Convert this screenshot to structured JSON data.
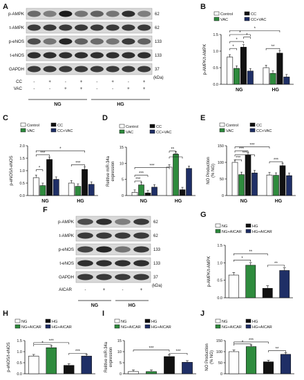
{
  "colors": {
    "control": "#ffffff",
    "cc": "#2e8b3d",
    "vac": "#111111",
    "ccvac": "#1f2f66",
    "ng": "#ffffff",
    "ng_aicar": "#2e8b3d",
    "hg": "#111111",
    "hg_aicar": "#1f2f66"
  },
  "panel_labels": {
    "A": "A",
    "B": "B",
    "C": "C",
    "D": "D",
    "E": "E",
    "F": "F",
    "G": "G",
    "H": "H",
    "I": "I",
    "J": "J"
  },
  "blot_A": {
    "rows": [
      {
        "label": "p-AMPK",
        "kda": "62"
      },
      {
        "label": "t-AMPK",
        "kda": "62"
      },
      {
        "label": "p-eNOS",
        "kda": "133"
      },
      {
        "label": "t-eNOS",
        "kda": "133"
      },
      {
        "label": "GAPDH",
        "kda": "37"
      }
    ],
    "kda_unit": "(kDa)",
    "treatments": [
      {
        "label": "CC",
        "signs": [
          "-",
          "+",
          "-",
          "+",
          "-",
          "+",
          "-",
          "+"
        ]
      },
      {
        "label": "VAC",
        "signs": [
          "-",
          "-",
          "+",
          "+",
          "-",
          "-",
          "+",
          "+"
        ]
      }
    ],
    "groups": [
      "NG",
      "HG"
    ]
  },
  "blot_F": {
    "rows": [
      {
        "label": "p-AMPK",
        "kda": "62"
      },
      {
        "label": "t-AMPK",
        "kda": "62"
      },
      {
        "label": "p-eNOS",
        "kda": "133"
      },
      {
        "label": "t-eNOS",
        "kda": "133"
      },
      {
        "label": "GAPDH",
        "kda": "37"
      }
    ],
    "kda_unit": "(kDa)",
    "treatments": [
      {
        "label": "AICAR",
        "signs": [
          "-",
          "+",
          "-",
          "+"
        ]
      }
    ],
    "groups": [
      "NG",
      "HG"
    ]
  },
  "chart_data": [
    {
      "panel": "B",
      "type": "bar",
      "ylabel": "p-AMPK/t-AMPK",
      "categories": [
        "NG",
        "HG"
      ],
      "ylim": [
        0,
        1.5
      ],
      "yticks": [
        "0.0",
        "0.5",
        "1.0",
        "1.5"
      ],
      "legend": [
        "Control",
        "CC",
        "VAC",
        "CC+VAC"
      ],
      "series": [
        {
          "name": "Control",
          "values": [
            0.82,
            0.5
          ]
        },
        {
          "name": "CC",
          "values": [
            0.48,
            0.33
          ]
        },
        {
          "name": "VAC",
          "values": [
            1.12,
            0.94
          ]
        },
        {
          "name": "CC+VAC",
          "values": [
            0.4,
            0.22
          ]
        }
      ],
      "annotations": [
        "*",
        "*",
        "*",
        "*",
        "*",
        "**"
      ]
    },
    {
      "panel": "C",
      "type": "bar",
      "ylabel": "p-eNOS/t-eNOS",
      "categories": [
        "NG",
        "HG"
      ],
      "ylim": [
        0,
        2.0
      ],
      "yticks": [
        "0.0",
        "0.5",
        "1.0",
        "1.5",
        "2.0"
      ],
      "legend": [
        "Control",
        "CC",
        "VAC",
        "CC+VAC"
      ],
      "series": [
        {
          "name": "Control",
          "values": [
            0.72,
            0.5
          ]
        },
        {
          "name": "CC",
          "values": [
            0.4,
            0.37
          ]
        },
        {
          "name": "VAC",
          "values": [
            1.45,
            1.05
          ]
        },
        {
          "name": "CC+VAC",
          "values": [
            0.65,
            0.45
          ]
        }
      ],
      "annotations": [
        "*",
        "***",
        "*",
        "***"
      ]
    },
    {
      "panel": "D",
      "type": "bar",
      "ylabel": "Relitive miR-34a expression",
      "categories": [
        "NG",
        "HG"
      ],
      "ylim": [
        0,
        15
      ],
      "yticks": [
        "0",
        "5",
        "10",
        "15"
      ],
      "legend": [
        "Control",
        "CC",
        "VAC",
        "CC+VAC"
      ],
      "series": [
        {
          "name": "Control",
          "values": [
            1.0,
            8.8
          ]
        },
        {
          "name": "CC",
          "values": [
            3.3,
            12.8
          ]
        },
        {
          "name": "VAC",
          "values": [
            0.8,
            1.8
          ]
        },
        {
          "name": "CC+VAC",
          "values": [
            2.6,
            8.4
          ]
        }
      ],
      "annotations": [
        "***",
        "***",
        "***",
        "**",
        "***"
      ]
    },
    {
      "panel": "E",
      "type": "bar",
      "ylabel": "NO Production (% NG)",
      "categories": [
        "NG",
        "HG"
      ],
      "ylim": [
        0,
        150
      ],
      "yticks": [
        "0",
        "50",
        "100",
        "150"
      ],
      "legend": [
        "Control",
        "CC",
        "VAC",
        "CC+VAC"
      ],
      "series": [
        {
          "name": "Control",
          "values": [
            100,
            62
          ]
        },
        {
          "name": "CC",
          "values": [
            63,
            61
          ]
        },
        {
          "name": "VAC",
          "values": [
            122,
            90
          ]
        },
        {
          "name": "CC+VAC",
          "values": [
            68,
            60
          ]
        }
      ],
      "annotations": [
        "***",
        "***",
        "***",
        "***",
        "***"
      ]
    },
    {
      "panel": "G",
      "type": "bar",
      "ylabel": "p-AMPK/t-AMPK",
      "categories": [
        "NG",
        "NG+AICAR",
        "HG",
        "HG+AICAR"
      ],
      "ylim": [
        0,
        1.5
      ],
      "yticks": [
        "0.0",
        "0.5",
        "1.0",
        "1.5"
      ],
      "legend": [
        "NG",
        "HG",
        "NG+AICAR",
        "HG+AICAR"
      ],
      "values": [
        0.65,
        0.93,
        0.27,
        0.78
      ],
      "annotations": [
        "*",
        "**",
        "**"
      ]
    },
    {
      "panel": "H",
      "type": "bar",
      "ylabel": "p-eNOS/t-eNOS",
      "categories": [
        "NG",
        "NG+AICAR",
        "HG",
        "HG+AICAR"
      ],
      "ylim": [
        0,
        1.5
      ],
      "yticks": [
        "0.0",
        "0.5",
        "1.0",
        "1.5"
      ],
      "legend": [
        "NG",
        "HG",
        "NG+AICAR",
        "HG+AICAR"
      ],
      "values": [
        0.8,
        1.18,
        0.38,
        0.8
      ],
      "annotations": [
        "*",
        "***",
        "***"
      ]
    },
    {
      "panel": "I",
      "type": "bar",
      "ylabel": "Relitive miR-34a expression",
      "categories": [
        "NG",
        "NG+AICAR",
        "HG",
        "HG+AICAR"
      ],
      "ylim": [
        0,
        15
      ],
      "yticks": [
        "0",
        "5",
        "10",
        "15"
      ],
      "legend": [
        "NG",
        "HG",
        "NG+AICAR",
        "HG+AICAR"
      ],
      "values": [
        1.0,
        1.0,
        7.8,
        5.2
      ],
      "annotations": [
        "***",
        "***"
      ]
    },
    {
      "panel": "J",
      "type": "bar",
      "ylabel": "NO Production (% NG)",
      "categories": [
        "NG",
        "NG+AICAR",
        "HG",
        "HG+AICAR"
      ],
      "ylim": [
        0,
        150
      ],
      "yticks": [
        "0",
        "50",
        "100",
        "150"
      ],
      "legend": [
        "NG",
        "HG",
        "NG+AICAR",
        "HG+AICAR"
      ],
      "values": [
        100,
        123,
        54,
        88
      ],
      "annotations": [
        "*",
        "***",
        "**"
      ]
    }
  ]
}
